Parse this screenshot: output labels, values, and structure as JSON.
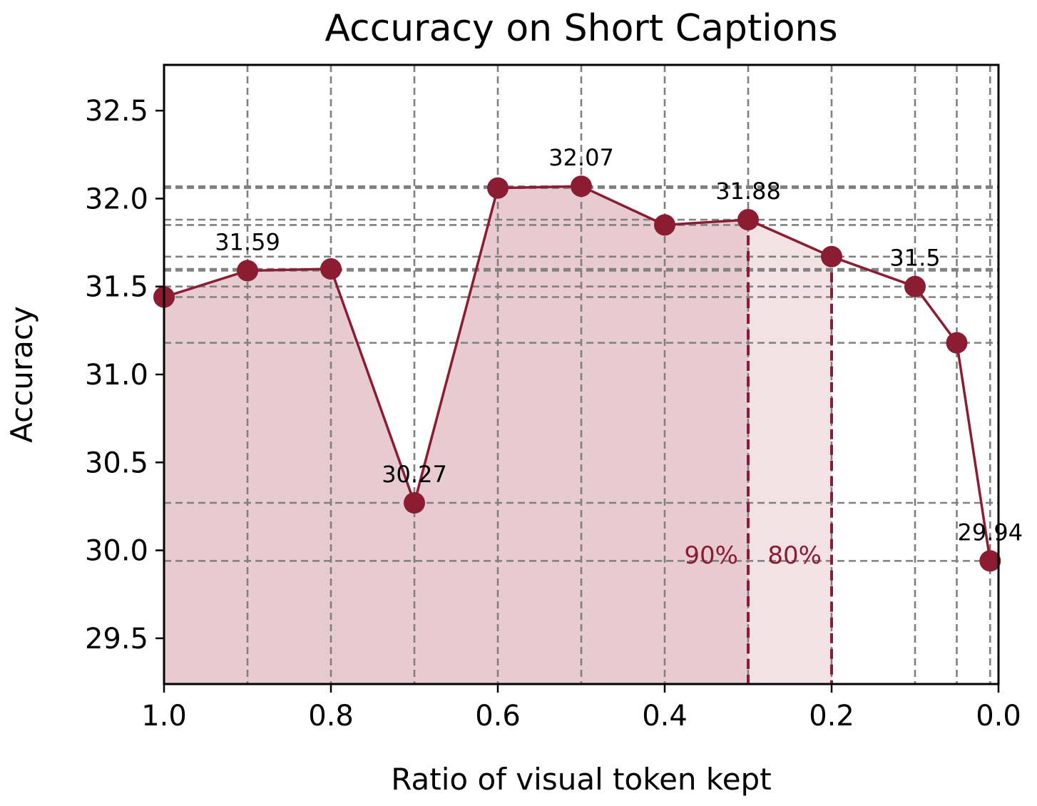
{
  "chart_data": {
    "type": "line",
    "title": "Accuracy on Short Captions",
    "xlabel": "Ratio of visual token kept",
    "ylabel": "Accuracy",
    "xlim": [
      1.0,
      0.0
    ],
    "ylim": [
      29.24,
      32.76
    ],
    "x_reversed": true,
    "grid": true,
    "xticks": [
      1.0,
      0.8,
      0.6,
      0.4,
      0.2,
      0.0
    ],
    "xtick_labels": [
      "1.0",
      "0.8",
      "0.6",
      "0.4",
      "0.2",
      "0.0"
    ],
    "yticks": [
      29.5,
      30.0,
      30.5,
      31.0,
      31.5,
      32.0,
      32.5
    ],
    "ytick_labels": [
      "29.5",
      "30.0",
      "30.5",
      "31.0",
      "31.5",
      "32.0",
      "32.5"
    ],
    "series": [
      {
        "x": [
          1.0,
          0.9,
          0.8,
          0.7,
          0.6,
          0.5,
          0.4,
          0.3,
          0.2,
          0.1,
          0.05,
          0.01
        ],
        "values": [
          31.44,
          31.59,
          31.6,
          30.27,
          32.06,
          32.07,
          31.85,
          31.88,
          31.67,
          31.5,
          31.18,
          29.94
        ],
        "color": "#8b1c32"
      }
    ],
    "data_labels": [
      {
        "x": 0.9,
        "text": "31.59"
      },
      {
        "x": 0.7,
        "text": "30.27"
      },
      {
        "x": 0.5,
        "text": "32.07"
      },
      {
        "x": 0.3,
        "text": "31.88"
      },
      {
        "x": 0.1,
        "text": "31.5"
      },
      {
        "x": 0.01,
        "text": "29.94"
      }
    ],
    "threshold_markers": [
      {
        "x": 0.3,
        "text": "90%"
      },
      {
        "x": 0.2,
        "text": "80%"
      }
    ],
    "colors": {
      "line": "#8b1c32",
      "fill_dark": "#e8cbd1",
      "fill_light": "#f2e2e5",
      "grid": "#808080"
    }
  }
}
